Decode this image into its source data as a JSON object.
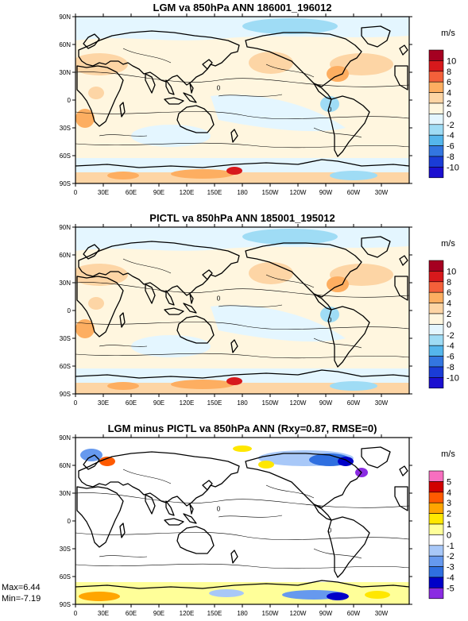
{
  "panels": [
    {
      "title": "LGM va 850hPa ANN 186001_196012",
      "units": "m/s",
      "colorbar": {
        "labels": [
          "10",
          "8",
          "6",
          "4",
          "2",
          "0",
          "-2",
          "-4",
          "-6",
          "-8",
          "-10"
        ],
        "colors": [
          "#a50021",
          "#d7191c",
          "#f4603a",
          "#fdae61",
          "#fdd5a5",
          "#fff6df",
          "#e4f6ff",
          "#9fdcf5",
          "#55b6ec",
          "#3376e0",
          "#1a3cd6",
          "#1b0fd0"
        ]
      }
    },
    {
      "title": "PICTL va 850hPa ANN 185001_195012",
      "units": "m/s",
      "colorbar": {
        "labels": [
          "10",
          "8",
          "6",
          "4",
          "2",
          "0",
          "-2",
          "-4",
          "-6",
          "-8",
          "-10"
        ],
        "colors": [
          "#a50021",
          "#d7191c",
          "#f4603a",
          "#fdae61",
          "#fdd5a5",
          "#fff6df",
          "#e4f6ff",
          "#9fdcf5",
          "#55b6ec",
          "#3376e0",
          "#1a3cd6",
          "#1b0fd0"
        ]
      }
    },
    {
      "title": "LGM minus PICTL va 850hPa ANN (Rxy=0.87, RMSE=0)",
      "units": "m/s",
      "colorbar": {
        "labels": [
          "5",
          "4",
          "3",
          "2",
          "1",
          "0",
          "-1",
          "-2",
          "-3",
          "-4",
          "-5"
        ],
        "colors": [
          "#f76fc0",
          "#d10000",
          "#ff5a00",
          "#ffa500",
          "#ffe700",
          "#ffff99",
          "#ffffff",
          "#a8c8f8",
          "#6699ee",
          "#2f6fe0",
          "#0000c8",
          "#8a2be2"
        ]
      }
    }
  ],
  "lat_ticks": [
    "90N",
    "60N",
    "30N",
    "0",
    "30S",
    "60S",
    "90S"
  ],
  "lon_ticks": [
    "0",
    "30E",
    "60E",
    "90E",
    "120E",
    "150E",
    "180",
    "150W",
    "120W",
    "90W",
    "60W",
    "30W"
  ],
  "stats": {
    "max": "Max=6.44",
    "min": "Min=-7.19"
  },
  "contour_label": "0"
}
